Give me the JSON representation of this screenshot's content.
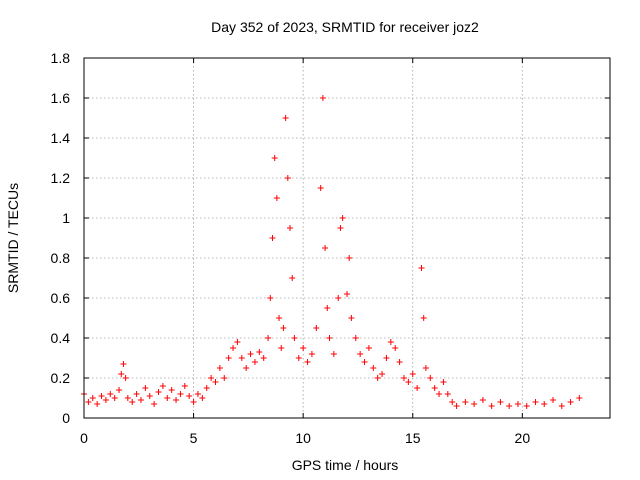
{
  "chart_data": {
    "type": "scatter",
    "title": "Day 352 of 2023, SRMTID for receiver joz2",
    "xlabel": "GPS time / hours",
    "ylabel": "SRMTID / TECUs",
    "xlim": [
      0,
      24
    ],
    "ylim": [
      0,
      1.8
    ],
    "xticks": [
      0,
      5,
      10,
      15,
      20
    ],
    "yticks": [
      0,
      0.2,
      0.4,
      0.6,
      0.8,
      1,
      1.2,
      1.4,
      1.6,
      1.8
    ],
    "xtick_labels": [
      "0",
      "5",
      "10",
      "15",
      "20"
    ],
    "ytick_labels": [
      "0",
      "0.2",
      "0.4",
      "0.6",
      "0.8",
      "1",
      "1.2",
      "1.4",
      "1.6",
      "1.8"
    ],
    "grid": true,
    "marker": "+",
    "color": "#ff0000",
    "series": [
      {
        "name": "SRMTID",
        "points": [
          [
            0.0,
            0.12
          ],
          [
            0.2,
            0.08
          ],
          [
            0.4,
            0.1
          ],
          [
            0.6,
            0.07
          ],
          [
            0.8,
            0.11
          ],
          [
            1.0,
            0.09
          ],
          [
            1.2,
            0.12
          ],
          [
            1.4,
            0.1
          ],
          [
            1.6,
            0.14
          ],
          [
            1.7,
            0.22
          ],
          [
            1.8,
            0.27
          ],
          [
            1.9,
            0.2
          ],
          [
            2.0,
            0.1
          ],
          [
            2.2,
            0.08
          ],
          [
            2.4,
            0.12
          ],
          [
            2.6,
            0.09
          ],
          [
            2.8,
            0.15
          ],
          [
            3.0,
            0.11
          ],
          [
            3.2,
            0.07
          ],
          [
            3.4,
            0.13
          ],
          [
            3.6,
            0.16
          ],
          [
            3.8,
            0.1
          ],
          [
            4.0,
            0.14
          ],
          [
            4.2,
            0.09
          ],
          [
            4.4,
            0.12
          ],
          [
            4.6,
            0.16
          ],
          [
            4.8,
            0.11
          ],
          [
            5.0,
            0.08
          ],
          [
            5.2,
            0.12
          ],
          [
            5.4,
            0.1
          ],
          [
            5.6,
            0.15
          ],
          [
            5.8,
            0.2
          ],
          [
            6.0,
            0.18
          ],
          [
            6.2,
            0.25
          ],
          [
            6.4,
            0.2
          ],
          [
            6.6,
            0.3
          ],
          [
            6.8,
            0.35
          ],
          [
            7.0,
            0.38
          ],
          [
            7.2,
            0.3
          ],
          [
            7.4,
            0.25
          ],
          [
            7.6,
            0.32
          ],
          [
            7.8,
            0.28
          ],
          [
            8.0,
            0.33
          ],
          [
            8.2,
            0.3
          ],
          [
            8.4,
            0.4
          ],
          [
            8.5,
            0.6
          ],
          [
            8.6,
            0.9
          ],
          [
            8.7,
            1.3
          ],
          [
            8.8,
            1.1
          ],
          [
            8.9,
            0.5
          ],
          [
            9.0,
            0.35
          ],
          [
            9.1,
            0.45
          ],
          [
            9.2,
            1.5
          ],
          [
            9.3,
            1.2
          ],
          [
            9.4,
            0.95
          ],
          [
            9.5,
            0.7
          ],
          [
            9.6,
            0.4
          ],
          [
            9.8,
            0.3
          ],
          [
            10.0,
            0.35
          ],
          [
            10.2,
            0.28
          ],
          [
            10.4,
            0.32
          ],
          [
            10.6,
            0.45
          ],
          [
            10.8,
            1.15
          ],
          [
            10.9,
            1.6
          ],
          [
            11.0,
            0.85
          ],
          [
            11.1,
            0.55
          ],
          [
            11.2,
            0.4
          ],
          [
            11.4,
            0.32
          ],
          [
            11.6,
            0.6
          ],
          [
            11.7,
            0.95
          ],
          [
            11.8,
            1.0
          ],
          [
            12.0,
            0.62
          ],
          [
            12.1,
            0.8
          ],
          [
            12.2,
            0.5
          ],
          [
            12.4,
            0.4
          ],
          [
            12.6,
            0.32
          ],
          [
            12.8,
            0.28
          ],
          [
            13.0,
            0.35
          ],
          [
            13.2,
            0.25
          ],
          [
            13.4,
            0.2
          ],
          [
            13.6,
            0.22
          ],
          [
            13.8,
            0.3
          ],
          [
            14.0,
            0.38
          ],
          [
            14.2,
            0.35
          ],
          [
            14.4,
            0.28
          ],
          [
            14.6,
            0.2
          ],
          [
            14.8,
            0.18
          ],
          [
            15.0,
            0.22
          ],
          [
            15.2,
            0.15
          ],
          [
            15.4,
            0.75
          ],
          [
            15.5,
            0.5
          ],
          [
            15.6,
            0.25
          ],
          [
            15.8,
            0.2
          ],
          [
            16.0,
            0.15
          ],
          [
            16.2,
            0.12
          ],
          [
            16.4,
            0.18
          ],
          [
            16.6,
            0.12
          ],
          [
            16.8,
            0.08
          ],
          [
            17.0,
            0.06
          ],
          [
            17.4,
            0.08
          ],
          [
            17.8,
            0.07
          ],
          [
            18.2,
            0.09
          ],
          [
            18.6,
            0.06
          ],
          [
            19.0,
            0.08
          ],
          [
            19.4,
            0.06
          ],
          [
            19.8,
            0.07
          ],
          [
            20.2,
            0.06
          ],
          [
            20.6,
            0.08
          ],
          [
            21.0,
            0.07
          ],
          [
            21.4,
            0.09
          ],
          [
            21.8,
            0.06
          ],
          [
            22.2,
            0.08
          ],
          [
            22.6,
            0.1
          ]
        ]
      }
    ]
  }
}
